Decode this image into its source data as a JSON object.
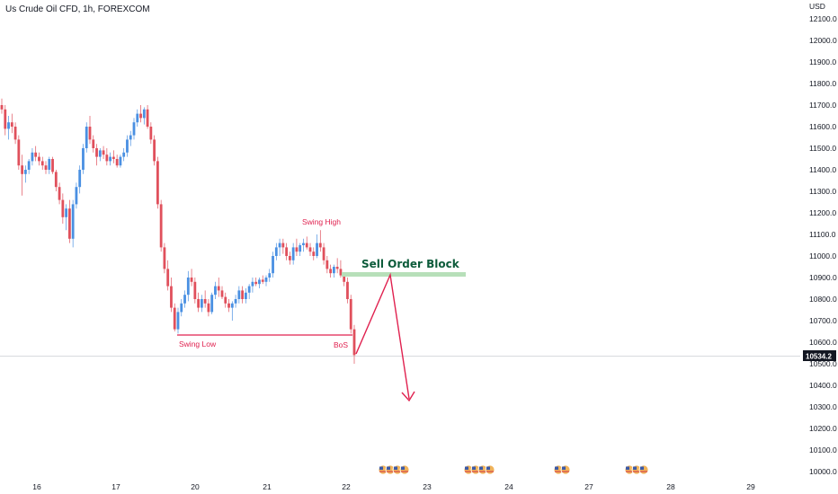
{
  "header": {
    "symbol_title": "Us Crude Oil CFD, 1h, FOREXCOM",
    "currency": "USD"
  },
  "colors": {
    "up": "#4a90e2",
    "down": "#e0505c",
    "annotation_red": "#e0214f",
    "order_block_fill": "#b7dfb9",
    "order_block_text": "#0c5b3a",
    "price_tag_bg": "#131722"
  },
  "price_axis": {
    "ticks": [
      "12100.0",
      "12000.0",
      "11900.0",
      "11800.0",
      "11700.0",
      "11600.0",
      "11500.0",
      "11400.0",
      "11300.0",
      "11200.0",
      "11100.0",
      "11000.0",
      "10900.0",
      "10800.0",
      "10700.0",
      "10600.0",
      "10500.0",
      "10400.0",
      "10300.0",
      "10200.0",
      "10100.0",
      "10000.0"
    ],
    "current_price": "10534.2"
  },
  "time_axis": {
    "labels": [
      "16",
      "17",
      "20",
      "21",
      "22",
      "23",
      "24",
      "27",
      "28",
      "29"
    ]
  },
  "annotations": {
    "swing_high": "Swing High",
    "swing_low": "Swing Low",
    "bos": "BoS",
    "sell_order_block": "Sell Order Block"
  },
  "event_icons": [
    "us-flag-icon",
    "us-flag-icon",
    "us-flag-icon",
    "us-flag-icon"
  ],
  "chart_data": {
    "type": "candlestick",
    "title": "Us Crude Oil CFD, 1h, FOREXCOM",
    "ylabel": "USD",
    "ylim": [
      9950,
      12180
    ],
    "x_labels": [
      "16",
      "17",
      "20",
      "21",
      "22",
      "23",
      "24",
      "27",
      "28",
      "29"
    ],
    "current_price": 10534.2,
    "series": [
      {
        "ohlc": [
          [
            11700,
            11730,
            11660,
            11680
          ],
          [
            11680,
            11700,
            11560,
            11590
          ],
          [
            11590,
            11650,
            11540,
            11620
          ],
          [
            11620,
            11660,
            11570,
            11600
          ],
          [
            11600,
            11620,
            11520,
            11540
          ],
          [
            11540,
            11560,
            11400,
            11420
          ],
          [
            11420,
            11470,
            11280,
            11380
          ],
          [
            11380,
            11420,
            11340,
            11400
          ],
          [
            11400,
            11450,
            11380,
            11440
          ],
          [
            11440,
            11500,
            11420,
            11480
          ],
          [
            11480,
            11510,
            11440,
            11460
          ],
          [
            11460,
            11480,
            11420,
            11440
          ],
          [
            11440,
            11460,
            11400,
            11420
          ],
          [
            11420,
            11440,
            11380,
            11400
          ],
          [
            11400,
            11460,
            11380,
            11450
          ],
          [
            11450,
            11460,
            11380,
            11390
          ],
          [
            11390,
            11400,
            11300,
            11320
          ],
          [
            11320,
            11340,
            11240,
            11260
          ],
          [
            11260,
            11290,
            11150,
            11180
          ],
          [
            11180,
            11240,
            11120,
            11220
          ],
          [
            11220,
            11260,
            11060,
            11080
          ],
          [
            11080,
            11260,
            11040,
            11240
          ],
          [
            11240,
            11340,
            11220,
            11320
          ],
          [
            11320,
            11420,
            11290,
            11400
          ],
          [
            11400,
            11520,
            11380,
            11500
          ],
          [
            11500,
            11620,
            11480,
            11600
          ],
          [
            11600,
            11650,
            11520,
            11540
          ],
          [
            11540,
            11560,
            11480,
            11500
          ],
          [
            11500,
            11520,
            11420,
            11460
          ],
          [
            11460,
            11500,
            11440,
            11490
          ],
          [
            11490,
            11510,
            11450,
            11470
          ],
          [
            11470,
            11500,
            11420,
            11440
          ],
          [
            11440,
            11480,
            11420,
            11460
          ],
          [
            11460,
            11490,
            11430,
            11450
          ],
          [
            11450,
            11470,
            11410,
            11420
          ],
          [
            11420,
            11470,
            11410,
            11460
          ],
          [
            11460,
            11500,
            11440,
            11480
          ],
          [
            11480,
            11560,
            11460,
            11540
          ],
          [
            11540,
            11580,
            11510,
            11560
          ],
          [
            11560,
            11640,
            11540,
            11620
          ],
          [
            11620,
            11680,
            11600,
            11660
          ],
          [
            11660,
            11700,
            11620,
            11640
          ],
          [
            11640,
            11690,
            11610,
            11680
          ],
          [
            11680,
            11700,
            11590,
            11600
          ],
          [
            11600,
            11620,
            11520,
            11540
          ],
          [
            11540,
            11560,
            11420,
            11440
          ],
          [
            11440,
            11460,
            11220,
            11240
          ],
          [
            11240,
            11260,
            11020,
            11040
          ],
          [
            11040,
            11060,
            10920,
            10940
          ],
          [
            10940,
            10980,
            10840,
            10860
          ],
          [
            10860,
            10900,
            10740,
            10760
          ],
          [
            10760,
            10780,
            10650,
            10660
          ],
          [
            10660,
            10760,
            10640,
            10740
          ],
          [
            10740,
            10800,
            10720,
            10780
          ],
          [
            10780,
            10840,
            10760,
            10820
          ],
          [
            10820,
            10930,
            10790,
            10900
          ],
          [
            10900,
            10940,
            10860,
            10880
          ],
          [
            10880,
            10900,
            10780,
            10800
          ],
          [
            10800,
            10830,
            10740,
            10760
          ],
          [
            10760,
            10820,
            10740,
            10800
          ],
          [
            10800,
            10840,
            10760,
            10780
          ],
          [
            10780,
            10800,
            10720,
            10740
          ],
          [
            10740,
            10830,
            10730,
            10820
          ],
          [
            10820,
            10880,
            10800,
            10860
          ],
          [
            10860,
            10900,
            10810,
            10840
          ],
          [
            10840,
            10860,
            10800,
            10810
          ],
          [
            10810,
            10830,
            10760,
            10780
          ],
          [
            10780,
            10800,
            10740,
            10760
          ],
          [
            10760,
            10790,
            10700,
            10780
          ],
          [
            10780,
            10820,
            10760,
            10800
          ],
          [
            10800,
            10860,
            10780,
            10840
          ],
          [
            10840,
            10860,
            10780,
            10800
          ],
          [
            10800,
            10850,
            10780,
            10830
          ],
          [
            10830,
            10870,
            10800,
            10860
          ],
          [
            10860,
            10900,
            10830,
            10880
          ],
          [
            10880,
            10900,
            10860,
            10870
          ],
          [
            10870,
            10900,
            10850,
            10890
          ],
          [
            10890,
            10910,
            10870,
            10880
          ],
          [
            10880,
            10910,
            10860,
            10900
          ],
          [
            10900,
            10940,
            10880,
            10920
          ],
          [
            10920,
            11020,
            10900,
            11000
          ],
          [
            11000,
            11060,
            10980,
            11040
          ],
          [
            11040,
            11080,
            11000,
            11060
          ],
          [
            11060,
            11080,
            11010,
            11040
          ],
          [
            11040,
            11060,
            10980,
            11000
          ],
          [
            11000,
            11020,
            10960,
            10980
          ],
          [
            10980,
            11060,
            10960,
            11040
          ],
          [
            11040,
            11080,
            11000,
            11020
          ],
          [
            11020,
            11060,
            11000,
            11050
          ],
          [
            11050,
            11080,
            11020,
            11060
          ],
          [
            11060,
            11090,
            11030,
            11040
          ],
          [
            11040,
            11060,
            11000,
            11020
          ],
          [
            11020,
            11040,
            10980,
            11000
          ],
          [
            11000,
            11100,
            10990,
            11060
          ],
          [
            11060,
            11120,
            11020,
            11040
          ],
          [
            11040,
            11060,
            10960,
            10980
          ],
          [
            10980,
            11000,
            10920,
            10940
          ],
          [
            10940,
            10960,
            10900,
            10920
          ],
          [
            10920,
            10960,
            10900,
            10950
          ],
          [
            10950,
            10990,
            10920,
            10940
          ],
          [
            10940,
            10980,
            10900,
            10910
          ],
          [
            10910,
            10920,
            10860,
            10880
          ],
          [
            10880,
            10900,
            10780,
            10800
          ],
          [
            10800,
            10820,
            10640,
            10660
          ],
          [
            10660,
            10680,
            10500,
            10540
          ]
        ]
      }
    ]
  }
}
